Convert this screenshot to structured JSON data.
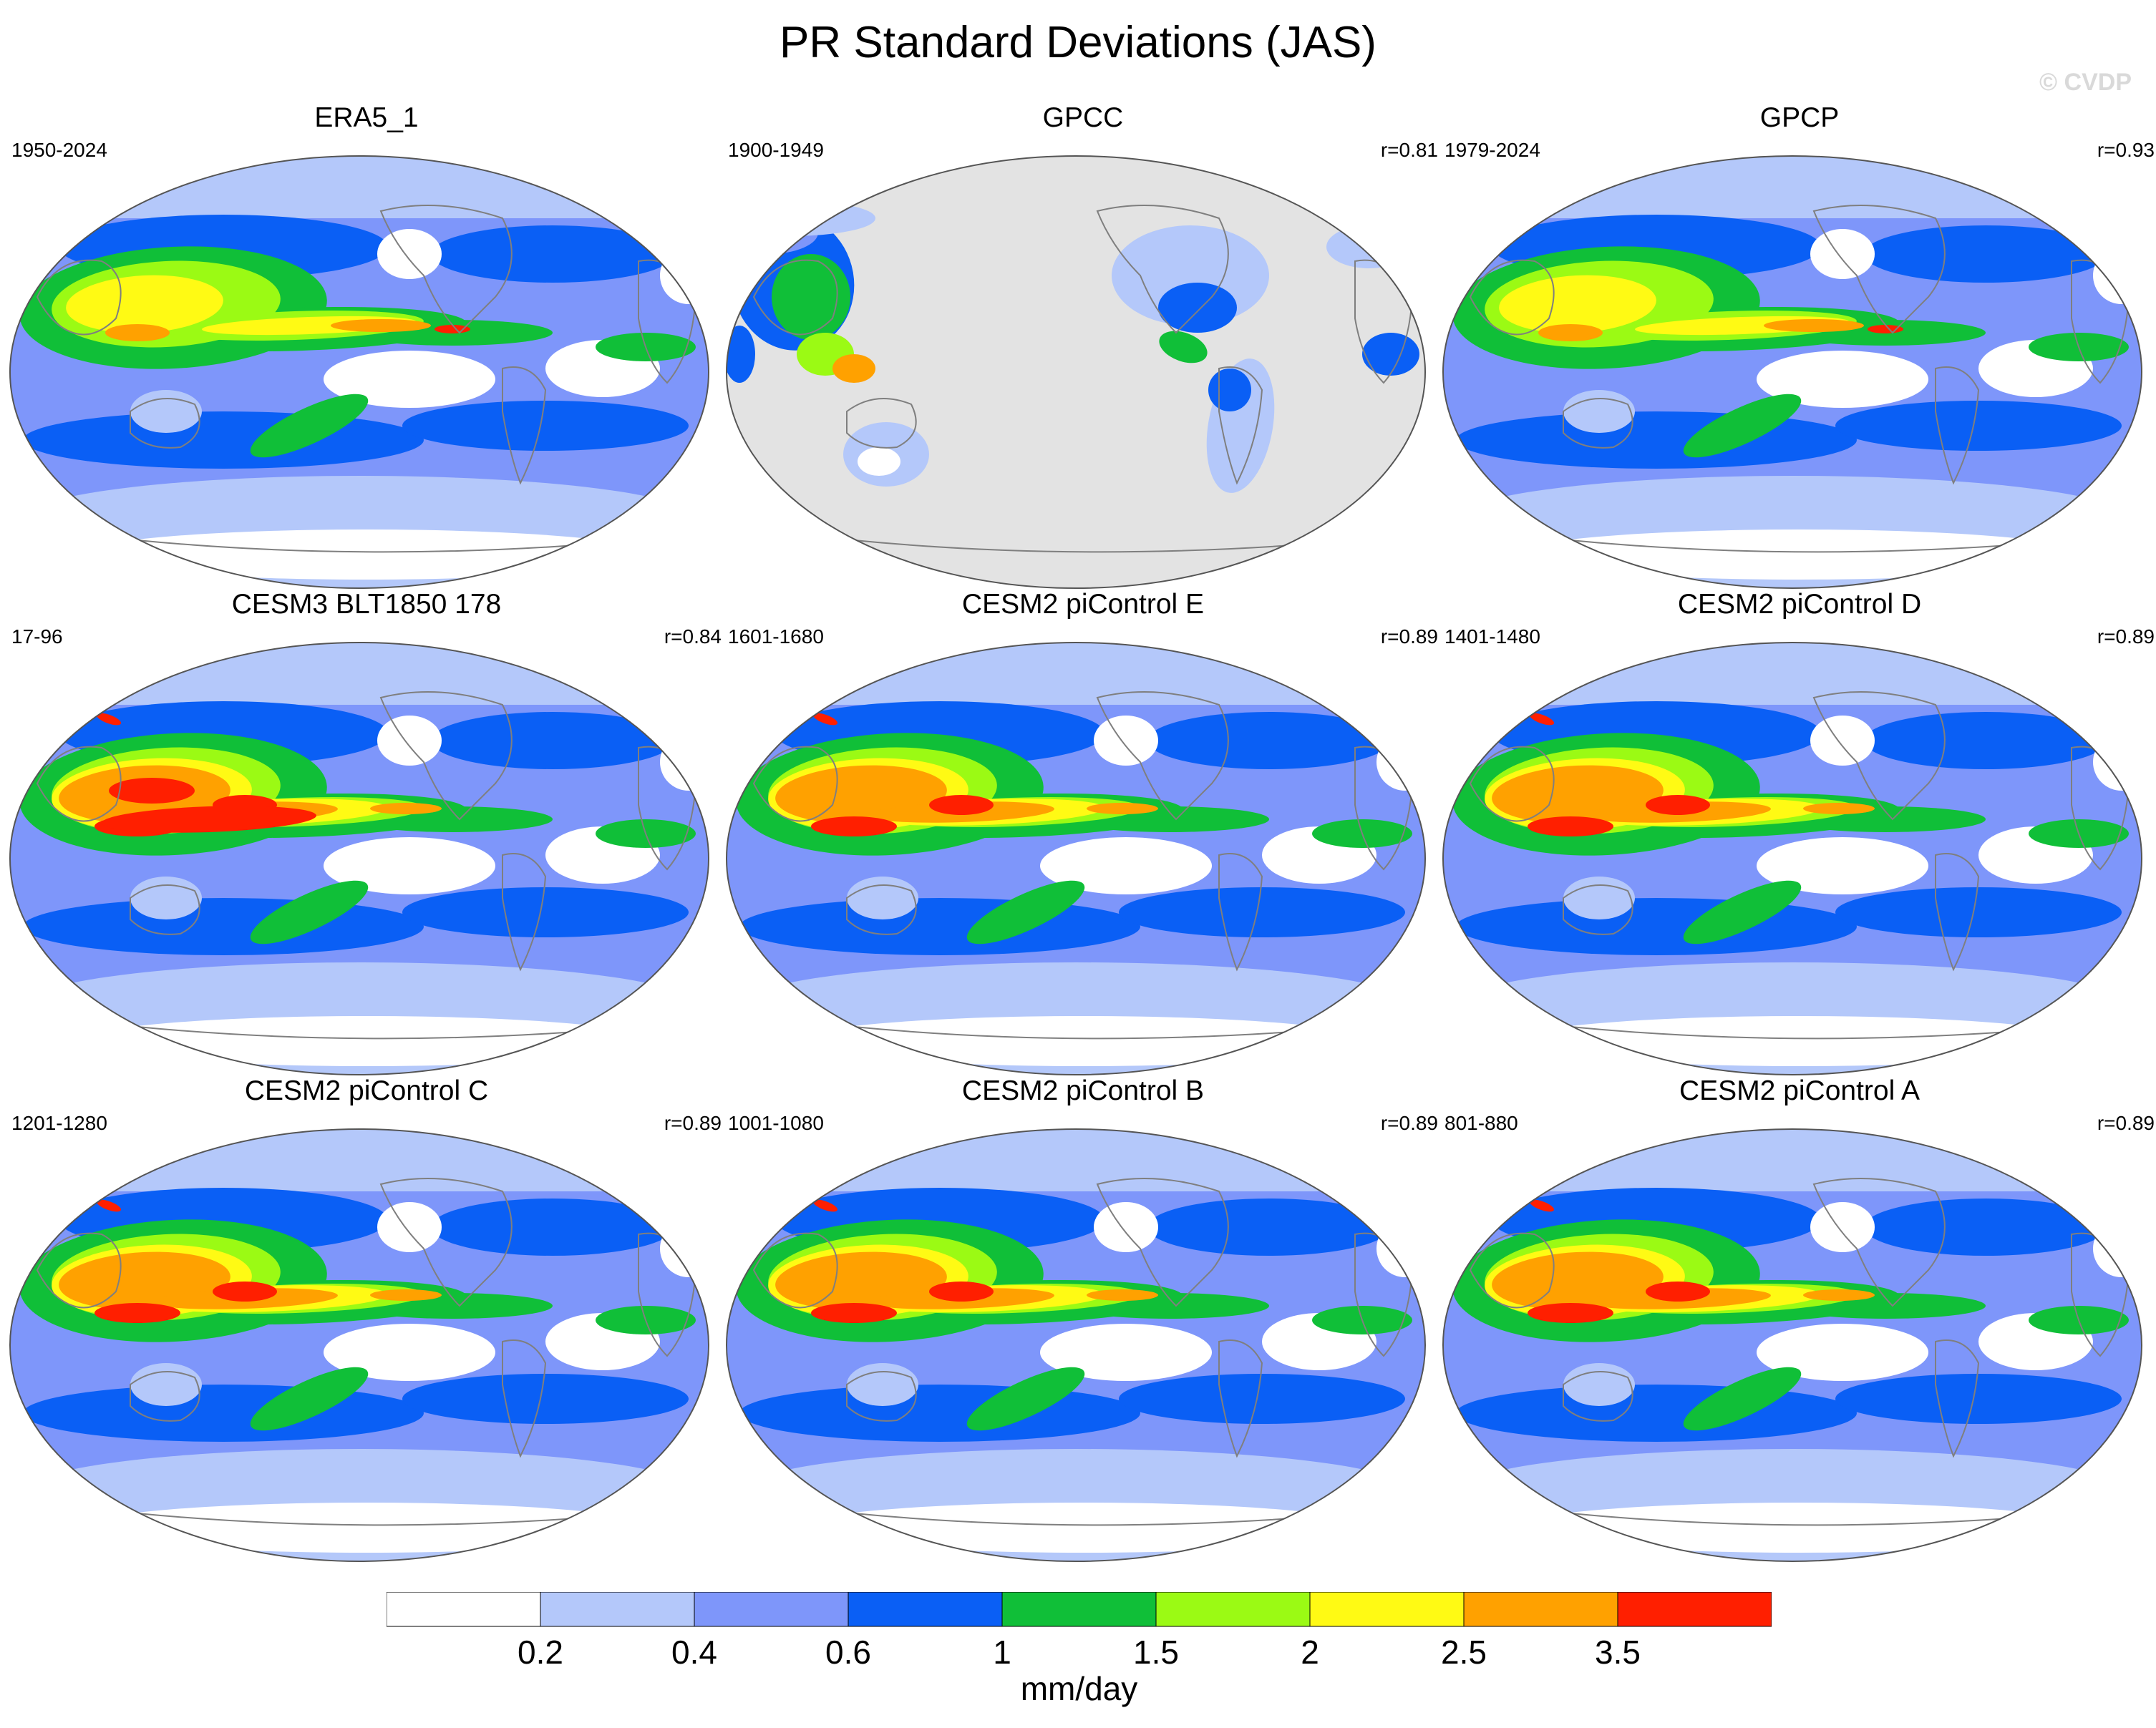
{
  "title": "PR Standard Deviations (JAS)",
  "watermark": "© CVDP",
  "panels": [
    {
      "title": "ERA5_1",
      "years": "1950-2024",
      "r": "",
      "style": "obs"
    },
    {
      "title": "GPCC",
      "years": "1900-1949",
      "r": "r=0.81",
      "style": "land"
    },
    {
      "title": "GPCP",
      "years": "1979-2024",
      "r": "r=0.93",
      "style": "obs"
    },
    {
      "title": "CESM3 BLT1850 178",
      "years": "17-96",
      "r": "r=0.84",
      "style": "model-strong"
    },
    {
      "title": "CESM2 piControl E",
      "years": "1601-1680",
      "r": "r=0.89",
      "style": "model"
    },
    {
      "title": "CESM2 piControl D",
      "years": "1401-1480",
      "r": "r=0.89",
      "style": "model"
    },
    {
      "title": "CESM2 piControl C",
      "years": "1201-1280",
      "r": "r=0.89",
      "style": "model"
    },
    {
      "title": "CESM2 piControl B",
      "years": "1001-1080",
      "r": "r=0.89",
      "style": "model"
    },
    {
      "title": "CESM2 piControl A",
      "years": "801-880",
      "r": "r=0.89",
      "style": "model"
    }
  ],
  "colorbar": {
    "unit_label": "mm/day",
    "tick_labels": [
      "0.2",
      "0.4",
      "0.6",
      "1",
      "1.5",
      "2",
      "2.5",
      "3.5"
    ],
    "colors": [
      "#ffffff",
      "#b4c8fa",
      "#7e96fa",
      "#0a5ff5",
      "#10bf38",
      "#9bfa14",
      "#fffa14",
      "#ffa100",
      "#ff1f00"
    ]
  },
  "map_colors": {
    "land_missing": "#e3e3e3",
    "coastline": "#7f7f7f"
  }
}
